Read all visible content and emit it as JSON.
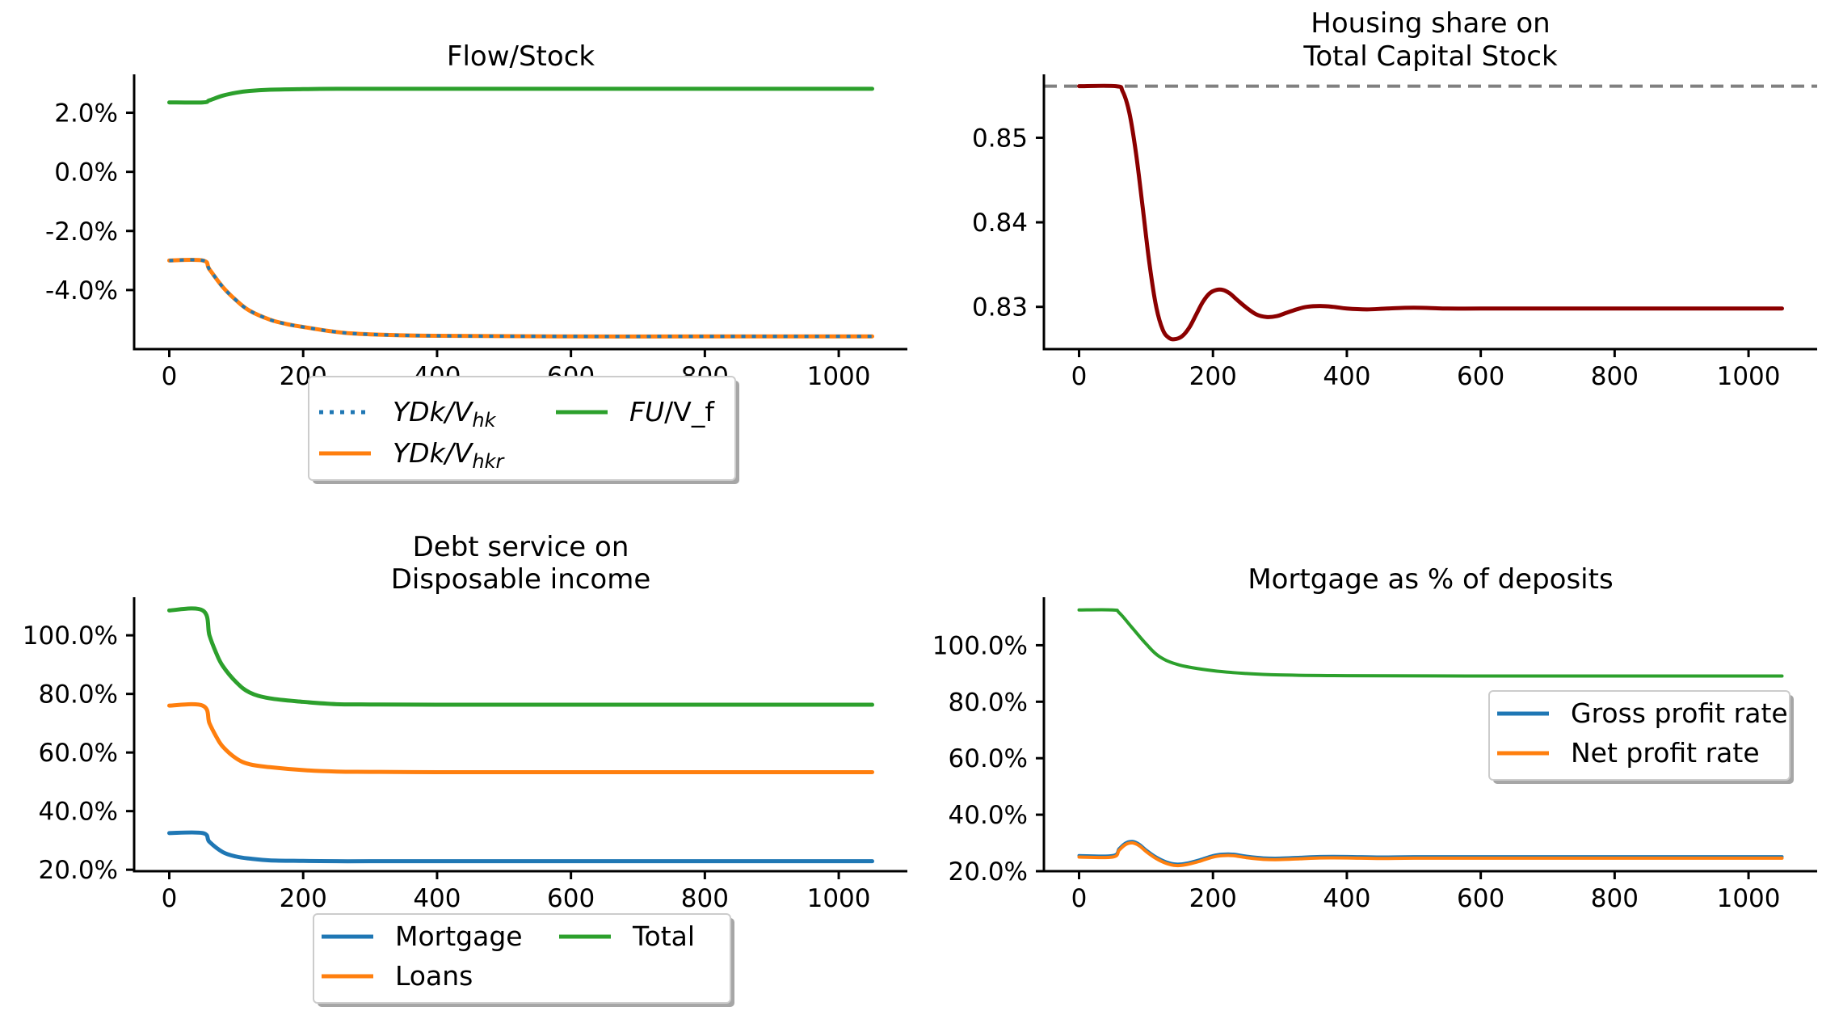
{
  "chart_data": [
    {
      "type": "line",
      "title_lines": [
        "Flow/Stock"
      ],
      "xlabel": "",
      "ylabel": "",
      "xlim": [
        -52.5,
        1102.5
      ],
      "ylim": [
        -6.0,
        3.3
      ],
      "xticks": [
        0,
        200,
        400,
        600,
        800,
        1000
      ],
      "xtick_labels": [
        "0",
        "200",
        "400",
        "600",
        "800",
        "1000"
      ],
      "yticks": [
        2.0,
        0.0,
        -2.0,
        -4.0
      ],
      "ytick_labels": [
        "2.0%",
        "0.0%",
        "-2.0%",
        "-4.0%"
      ],
      "grid": false,
      "legend": {
        "placement": "below center, 2 columns",
        "entries": [
          {
            "label_parts": [
              {
                "t": "YDk/V",
                "it": true
              },
              {
                "t": "hk",
                "it": true,
                "sub": true
              }
            ],
            "color": "#1f77b4",
            "style": "dotted"
          },
          {
            "label_parts": [
              {
                "t": "YDk/V",
                "it": true
              },
              {
                "t": "hkr",
                "it": true,
                "sub": true
              }
            ],
            "color": "#ff7f0e",
            "style": "solid"
          },
          {
            "label_parts": [
              {
                "t": "FU",
                "it": true
              },
              {
                "t": "/V_f",
                "it": false
              }
            ],
            "color": "#2ca02c",
            "style": "solid"
          }
        ]
      },
      "series": [
        {
          "color": "#2ca02c",
          "style": "solid",
          "width": 5,
          "x": [
            0,
            50,
            60,
            80,
            100,
            120,
            150,
            200,
            250,
            300,
            400,
            600,
            800,
            1050
          ],
          "y": [
            2.35,
            2.35,
            2.42,
            2.58,
            2.68,
            2.74,
            2.78,
            2.8,
            2.81,
            2.81,
            2.81,
            2.81,
            2.81,
            2.81
          ]
        },
        {
          "color": "#ff7f0e",
          "style": "solid",
          "width": 5,
          "x": [
            0,
            50,
            60,
            80,
            100,
            120,
            150,
            175,
            200,
            250,
            300,
            400,
            600,
            800,
            1050
          ],
          "y": [
            -3.0,
            -3.0,
            -3.3,
            -3.9,
            -4.35,
            -4.7,
            -5.0,
            -5.15,
            -5.25,
            -5.42,
            -5.5,
            -5.55,
            -5.57,
            -5.57,
            -5.57
          ]
        },
        {
          "color": "#1f77b4",
          "style": "dotted",
          "width": 4,
          "x": [
            0,
            50,
            60,
            80,
            100,
            120,
            150,
            175,
            200,
            250,
            300,
            400,
            600,
            800,
            1050
          ],
          "y": [
            -3.0,
            -3.0,
            -3.3,
            -3.9,
            -4.35,
            -4.7,
            -5.0,
            -5.15,
            -5.25,
            -5.42,
            -5.5,
            -5.55,
            -5.57,
            -5.57,
            -5.57
          ]
        }
      ]
    },
    {
      "type": "line",
      "title_lines": [
        "Housing share on",
        "Total Capital Stock"
      ],
      "xlabel": "",
      "ylabel": "",
      "xlim": [
        -52.5,
        1102.5
      ],
      "ylim": [
        0.825,
        0.8575
      ],
      "xticks": [
        0,
        200,
        400,
        600,
        800,
        1000
      ],
      "xtick_labels": [
        "0",
        "200",
        "400",
        "600",
        "800",
        "1000"
      ],
      "yticks": [
        0.85,
        0.84,
        0.83
      ],
      "ytick_labels": [
        "0.85",
        "0.84",
        "0.83"
      ],
      "grid": false,
      "reference_line": {
        "y": 0.8561,
        "color": "#808080",
        "style": "dashed"
      },
      "series": [
        {
          "color": "#8b0000",
          "style": "solid",
          "width": 5,
          "x": [
            0,
            55,
            65,
            75,
            85,
            95,
            105,
            115,
            125,
            135,
            145,
            155,
            165,
            175,
            185,
            195,
            205,
            215,
            225,
            235,
            250,
            265,
            280,
            295,
            310,
            325,
            340,
            360,
            380,
            400,
            430,
            460,
            500,
            550,
            600,
            700,
            800,
            900,
            1050
          ],
          "y": [
            0.8561,
            0.8561,
            0.8555,
            0.853,
            0.8482,
            0.8418,
            0.8352,
            0.8301,
            0.8273,
            0.8263,
            0.8262,
            0.8266,
            0.8276,
            0.8291,
            0.8306,
            0.8316,
            0.832,
            0.832,
            0.8316,
            0.8309,
            0.8299,
            0.8291,
            0.8288,
            0.8289,
            0.8293,
            0.8297,
            0.83,
            0.8301,
            0.83,
            0.8298,
            0.8297,
            0.8298,
            0.8299,
            0.8298,
            0.8298,
            0.8298,
            0.8298,
            0.8298,
            0.8298
          ]
        }
      ]
    },
    {
      "type": "line",
      "title_lines": [
        "Debt service on",
        "Disposable income"
      ],
      "xlabel": "",
      "ylabel": "",
      "xlim": [
        -52.5,
        1102.5
      ],
      "ylim": [
        19.5,
        113.0
      ],
      "xticks": [
        0,
        200,
        400,
        600,
        800,
        1000
      ],
      "xtick_labels": [
        "0",
        "200",
        "400",
        "600",
        "800",
        "1000"
      ],
      "yticks": [
        100,
        80,
        60,
        40,
        20
      ],
      "ytick_labels": [
        "100.0%",
        "80.0%",
        "60.0%",
        "40.0%",
        "20.0%"
      ],
      "grid": false,
      "legend": {
        "placement": "below center, 2 columns",
        "entries": [
          {
            "label_parts": [
              {
                "t": "Mortgage",
                "it": false
              }
            ],
            "color": "#1f77b4",
            "style": "solid"
          },
          {
            "label_parts": [
              {
                "t": "Loans",
                "it": false
              }
            ],
            "color": "#ff7f0e",
            "style": "solid"
          },
          {
            "label_parts": [
              {
                "t": "Total",
                "it": false
              }
            ],
            "color": "#2ca02c",
            "style": "solid"
          }
        ]
      },
      "series": [
        {
          "color": "#2ca02c",
          "style": "solid",
          "width": 5,
          "x": [
            0,
            50,
            60,
            70,
            80,
            100,
            120,
            150,
            200,
            250,
            300,
            400,
            600,
            800,
            1050
          ],
          "y": [
            108.5,
            108.5,
            100.0,
            94.0,
            89.5,
            84.0,
            80.5,
            78.5,
            77.3,
            76.5,
            76.4,
            76.3,
            76.3,
            76.3,
            76.3
          ]
        },
        {
          "color": "#ff7f0e",
          "style": "solid",
          "width": 5,
          "x": [
            0,
            50,
            60,
            70,
            80,
            100,
            120,
            150,
            200,
            250,
            300,
            400,
            600,
            800,
            1050
          ],
          "y": [
            76.0,
            76.0,
            70.0,
            65.5,
            62.0,
            58.0,
            56.0,
            55.0,
            54.0,
            53.5,
            53.4,
            53.3,
            53.3,
            53.3,
            53.3
          ]
        },
        {
          "color": "#1f77b4",
          "style": "solid",
          "width": 5,
          "x": [
            0,
            50,
            60,
            80,
            100,
            120,
            150,
            200,
            250,
            300,
            400,
            600,
            800,
            1050
          ],
          "y": [
            32.5,
            32.5,
            29.5,
            26.0,
            24.5,
            23.8,
            23.2,
            23.0,
            22.9,
            22.9,
            22.9,
            22.9,
            22.9,
            22.9
          ]
        }
      ]
    },
    {
      "type": "line",
      "title_lines": [
        "Mortgage as % of deposits"
      ],
      "xlabel": "",
      "ylabel": "",
      "xlim": [
        -52.5,
        1102.5
      ],
      "ylim": [
        20.0,
        117.0
      ],
      "xticks": [
        0,
        200,
        400,
        600,
        800,
        1000
      ],
      "xtick_labels": [
        "0",
        "200",
        "400",
        "600",
        "800",
        "1000"
      ],
      "yticks": [
        100,
        80,
        60,
        40,
        20
      ],
      "ytick_labels": [
        "100.0%",
        "80.0%",
        "60.0%",
        "40.0%",
        "20.0%"
      ],
      "grid": false,
      "legend": {
        "placement": "center right, 1 column",
        "entries": [
          {
            "label_parts": [
              {
                "t": "Gross profit rate",
                "it": false
              }
            ],
            "color": "#1f77b4",
            "style": "solid"
          },
          {
            "label_parts": [
              {
                "t": "Net profit rate",
                "it": false
              }
            ],
            "color": "#ff7f0e",
            "style": "solid"
          }
        ]
      },
      "series": [
        {
          "color": "#2ca02c",
          "style": "solid",
          "width": 4,
          "x": [
            0,
            50,
            60,
            80,
            100,
            120,
            150,
            200,
            250,
            300,
            400,
            600,
            800,
            1050
          ],
          "y": [
            112.5,
            112.5,
            111.5,
            106.0,
            100.5,
            96.0,
            93.0,
            91.0,
            90.0,
            89.5,
            89.2,
            89.1,
            89.1,
            89.1
          ]
        },
        {
          "color": "#1f77b4",
          "style": "solid",
          "width": 4,
          "x": [
            0,
            50,
            60,
            70,
            80,
            90,
            100,
            115,
            130,
            145,
            160,
            180,
            200,
            215,
            230,
            250,
            275,
            300,
            330,
            360,
            400,
            450,
            500,
            600,
            800,
            1050
          ],
          "y": [
            25.5,
            25.5,
            28.0,
            30.0,
            30.5,
            29.5,
            27.5,
            25.0,
            23.3,
            22.5,
            22.8,
            24.0,
            25.5,
            26.0,
            26.0,
            25.3,
            24.7,
            24.6,
            24.9,
            25.2,
            25.2,
            25.0,
            25.1,
            25.1,
            25.1,
            25.1
          ]
        },
        {
          "color": "#ff7f0e",
          "style": "solid",
          "width": 4,
          "x": [
            0,
            50,
            60,
            70,
            80,
            90,
            100,
            115,
            130,
            145,
            160,
            180,
            200,
            215,
            230,
            250,
            275,
            300,
            330,
            360,
            400,
            450,
            500,
            600,
            800,
            1050
          ],
          "y": [
            25.0,
            25.0,
            27.5,
            29.5,
            30.0,
            29.0,
            27.0,
            24.5,
            22.8,
            22.0,
            22.3,
            23.5,
            25.0,
            25.5,
            25.5,
            24.8,
            24.2,
            24.1,
            24.4,
            24.7,
            24.7,
            24.5,
            24.6,
            24.6,
            24.6,
            24.6
          ]
        }
      ]
    }
  ]
}
